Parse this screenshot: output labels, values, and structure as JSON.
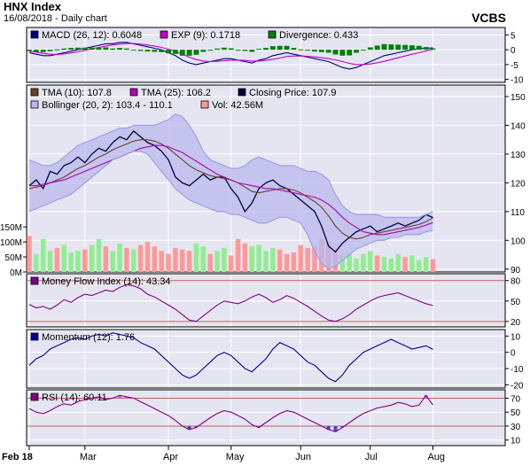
{
  "header": {
    "title": "HNX Index",
    "subtitle": "16/08/2018 - Daily chart",
    "ticker": "VCBS"
  },
  "colors": {
    "panel_bg": "#e5e5f2",
    "grid": "#ffffff",
    "macd": "#000080",
    "exp": "#c000c0",
    "divergence": "#008000",
    "tma10": "#6b4226",
    "tma25": "#b000b0",
    "closing": "#000040",
    "bollinger_fill": "#b8b8ee",
    "bollinger_edge": "#9a9ae0",
    "vol_up": "#90ee90",
    "vol_down": "#ff9999",
    "mfi": "#800080",
    "momentum": "#0000a0",
    "rsi": "#800080",
    "level_line": "#c06060",
    "shade_up": "#d060d0",
    "shade_down": "#4444cc"
  },
  "chart_data": [
    {
      "type": "bar",
      "panel": "macd",
      "legend": [
        {
          "swatch": "macd",
          "label": "MACD (26, 12): 0.6048"
        },
        {
          "swatch": "exp",
          "label": "EXP (9): 0.1718"
        },
        {
          "swatch": "divergence",
          "label": "Divergence: 0.433"
        }
      ],
      "y_ticks": [
        5,
        0,
        -5,
        -10
      ],
      "ylim": [
        -11,
        7.5
      ],
      "series": [
        {
          "name": "MACD (26, 12)",
          "type": "line",
          "color": "macd",
          "values": [
            -1,
            -1.5,
            -2,
            -2,
            -1.5,
            -1,
            -0.5,
            0,
            0.5,
            1,
            1.5,
            2,
            2,
            2.5,
            2.5,
            2,
            1.5,
            1,
            0.5,
            0,
            -1,
            -2,
            -3.5,
            -4.5,
            -5,
            -4.5,
            -4,
            -3.5,
            -3,
            -3,
            -3.5,
            -4,
            -4.5,
            -3.5,
            -3,
            -2,
            -1.5,
            -1,
            -1.5,
            -2,
            -2.5,
            -3,
            -3.5,
            -4,
            -5,
            -6,
            -6.5,
            -6,
            -5,
            -4,
            -3,
            -2,
            -1.5,
            -1,
            -0.5,
            0,
            0.3,
            0.5,
            0.6
          ]
        },
        {
          "name": "EXP (9)",
          "type": "line",
          "color": "exp",
          "values": [
            -0.5,
            -0.8,
            -1.2,
            -1.5,
            -1.6,
            -1.4,
            -1.1,
            -0.7,
            -0.2,
            0.3,
            0.8,
            1.2,
            1.6,
            1.9,
            2.1,
            2.1,
            1.9,
            1.6,
            1.2,
            0.8,
            0.2,
            -0.6,
            -1.5,
            -2.5,
            -3.3,
            -3.8,
            -4,
            -3.9,
            -3.7,
            -3.5,
            -3.5,
            -3.6,
            -3.8,
            -3.8,
            -3.6,
            -3.2,
            -2.8,
            -2.3,
            -2.1,
            -2.1,
            -2.2,
            -2.4,
            -2.7,
            -3,
            -3.4,
            -4,
            -4.6,
            -5,
            -5,
            -4.8,
            -4.4,
            -3.9,
            -3.3,
            -2.7,
            -2.1,
            -1.5,
            -1,
            -0.4,
            0.17
          ]
        },
        {
          "name": "Divergence",
          "type": "bar",
          "color": "divergence",
          "values": [
            -0.5,
            -0.7,
            -0.8,
            -0.5,
            0.1,
            0.4,
            0.6,
            0.7,
            0.7,
            0.7,
            0.7,
            0.8,
            0.4,
            0.6,
            0.4,
            -0.1,
            -0.4,
            -0.6,
            -0.7,
            -0.8,
            -1.2,
            -1.4,
            -2,
            -2,
            -1.7,
            -0.7,
            0,
            0.4,
            0.7,
            0.5,
            0,
            -0.4,
            -0.7,
            0.3,
            0.6,
            1.2,
            1.3,
            1.3,
            0.6,
            0.1,
            -0.3,
            -0.6,
            -0.8,
            -1,
            -1.6,
            -2,
            -1.9,
            -1,
            0,
            0.8,
            1.4,
            1.9,
            1.8,
            1.7,
            1.6,
            1.5,
            1.3,
            0.9,
            0.43
          ]
        }
      ]
    },
    {
      "type": "line",
      "panel": "price",
      "legend": [
        {
          "swatch": "tma10",
          "label": "TMA (10): 107.8"
        },
        {
          "swatch": "tma25",
          "label": "TMA (25): 106.2"
        },
        {
          "swatch": "closing",
          "label": "Closing Price: 107.9"
        },
        {
          "swatch": "bollinger_fill",
          "label": "Bollinger (20, 2): 103.4 - 110.1"
        },
        {
          "swatch": "vol_down",
          "label": "Vol: 42.56M"
        }
      ],
      "y_ticks": [
        150,
        140,
        130,
        120,
        110,
        100,
        90
      ],
      "ylim": [
        89,
        154
      ],
      "volume_ticks": [
        {
          "label": "150M",
          "value": 150
        },
        {
          "label": "100M",
          "value": 100
        },
        {
          "label": "50M",
          "value": 50
        },
        {
          "label": "0M",
          "value": 0
        }
      ],
      "volume_max": 180,
      "series": [
        {
          "name": "Closing Price",
          "color": "closing",
          "values": [
            119,
            121,
            118,
            124,
            123,
            126,
            127,
            129,
            127,
            130,
            132,
            131,
            134,
            136,
            135,
            138,
            136,
            134,
            133,
            131,
            128,
            122,
            120,
            119,
            121,
            123,
            121,
            122,
            122,
            118,
            115,
            110,
            113,
            118,
            120,
            121,
            119,
            118,
            116,
            114,
            112,
            110,
            105,
            98,
            96,
            99,
            101,
            103,
            104,
            105,
            103,
            104,
            105,
            106,
            105,
            106,
            107,
            109,
            107.9
          ]
        },
        {
          "name": "TMA (10)",
          "color": "tma10",
          "values": [
            118,
            118.5,
            119,
            120,
            121,
            122,
            123.5,
            125,
            126,
            127.5,
            129,
            130,
            131.5,
            132.5,
            133.5,
            134.5,
            135,
            135,
            134.5,
            133.5,
            132,
            130,
            128,
            126,
            124.5,
            123.5,
            122.5,
            122,
            121.5,
            121,
            120,
            118.5,
            117,
            116.5,
            117,
            117.5,
            118,
            118,
            117.5,
            116.5,
            115,
            113.5,
            111.5,
            108.5,
            105,
            102.5,
            101,
            100.5,
            101,
            102,
            102.5,
            103,
            103.5,
            104,
            104.5,
            105,
            105.5,
            106.5,
            107.8
          ]
        },
        {
          "name": "TMA (25)",
          "color": "tma25",
          "values": [
            119,
            119,
            119.5,
            120,
            120.5,
            121,
            122,
            123,
            124,
            125,
            126,
            127,
            128,
            129,
            130,
            131,
            132,
            132.5,
            133,
            133,
            132.5,
            131.5,
            130.5,
            129,
            127.5,
            126,
            124.5,
            123,
            122,
            121,
            120,
            119.5,
            119,
            118.5,
            118,
            118,
            117.5,
            117,
            116.5,
            116,
            115.5,
            115,
            114,
            112.5,
            110.5,
            108,
            106,
            104.5,
            103,
            102.5,
            102,
            102,
            102.5,
            103,
            103.5,
            104,
            104.5,
            105.3,
            106.2
          ]
        },
        {
          "name": "Bollinger upper",
          "color": "bollinger_edge",
          "values": [
            128,
            127,
            126,
            126,
            127,
            129,
            131,
            133,
            134,
            135,
            136,
            137,
            138,
            139,
            139,
            140,
            140,
            140,
            140,
            141,
            142,
            144,
            143,
            140,
            136,
            131,
            128,
            127,
            126,
            125,
            125,
            126,
            128,
            129,
            128,
            127,
            126,
            126,
            126,
            125,
            124,
            124,
            123,
            121,
            116,
            112,
            110,
            109,
            109,
            109,
            109,
            108,
            108,
            108,
            108,
            108,
            108,
            109,
            110.1
          ]
        },
        {
          "name": "Bollinger lower",
          "color": "bollinger_edge",
          "values": [
            110,
            111,
            112,
            113,
            114,
            115,
            116,
            118,
            120,
            122,
            124,
            126,
            128,
            129,
            130,
            131,
            131,
            130,
            127,
            124,
            121,
            118,
            116,
            114,
            113,
            112,
            111,
            110,
            110,
            109,
            109,
            108,
            107,
            106,
            106,
            107,
            108,
            108,
            107,
            106,
            102,
            96,
            92,
            90,
            91,
            93,
            95,
            97,
            98,
            99,
            100,
            100,
            101,
            101,
            102,
            102,
            102,
            103,
            103.4
          ]
        }
      ],
      "volume": {
        "unit": "M",
        "values": [
          120,
          60,
          110,
          70,
          80,
          90,
          65,
          70,
          75,
          90,
          110,
          85,
          70,
          95,
          80,
          75,
          90,
          100,
          85,
          70,
          60,
          80,
          75,
          70,
          95,
          85,
          60,
          70,
          80,
          55,
          110,
          95,
          85,
          90,
          70,
          80,
          75,
          60,
          65,
          90,
          80,
          85,
          110,
          100,
          70,
          55,
          60,
          45,
          60,
          70,
          55,
          50,
          45,
          60,
          50,
          55,
          40,
          50,
          43
        ],
        "direction": [
          "down",
          "up",
          "up",
          "up",
          "down",
          "up",
          "up",
          "up",
          "down",
          "up",
          "up",
          "down",
          "up",
          "up",
          "down",
          "up",
          "down",
          "down",
          "down",
          "down",
          "down",
          "down",
          "down",
          "down",
          "up",
          "up",
          "down",
          "up",
          "up",
          "down",
          "down",
          "down",
          "up",
          "up",
          "up",
          "up",
          "down",
          "down",
          "down",
          "down",
          "down",
          "down",
          "down",
          "down",
          "down",
          "up",
          "up",
          "up",
          "up",
          "up",
          "down",
          "up",
          "up",
          "up",
          "down",
          "up",
          "up",
          "up",
          "down"
        ]
      }
    },
    {
      "type": "line",
      "panel": "mfi",
      "legend": [
        {
          "swatch": "mfi",
          "label": "Money Flow Index (14): 43.34"
        }
      ],
      "y_ticks": [
        80,
        50,
        20
      ],
      "ylim": [
        12,
        90
      ],
      "levels": [
        80,
        20
      ],
      "series": [
        {
          "name": "Money Flow Index (14)",
          "color": "mfi",
          "values": [
            45,
            40,
            42,
            38,
            44,
            52,
            48,
            55,
            60,
            58,
            62,
            66,
            64,
            70,
            74,
            72,
            68,
            60,
            56,
            50,
            44,
            38,
            30,
            22,
            20,
            28,
            36,
            44,
            50,
            48,
            46,
            50,
            56,
            60,
            55,
            48,
            52,
            58,
            54,
            48,
            42,
            35,
            28,
            22,
            20,
            24,
            30,
            38,
            44,
            50,
            55,
            58,
            60,
            62,
            58,
            54,
            50,
            46,
            43.34
          ]
        }
      ]
    },
    {
      "type": "line",
      "panel": "momentum",
      "legend": [
        {
          "swatch": "momentum",
          "label": "Momentum (12): 1.76"
        }
      ],
      "y_ticks": [
        10,
        0,
        -10,
        -20
      ],
      "ylim": [
        -22,
        14
      ],
      "series": [
        {
          "name": "Momentum (12)",
          "color": "momentum",
          "values": [
            -8,
            -4,
            -2,
            2,
            4,
            6,
            8,
            9,
            8,
            10,
            11,
            10,
            12,
            11,
            10,
            9,
            6,
            4,
            2,
            -2,
            -6,
            -10,
            -14,
            -16,
            -14,
            -10,
            -6,
            -2,
            0,
            -2,
            -6,
            -10,
            -12,
            -8,
            -4,
            2,
            6,
            4,
            2,
            -2,
            -6,
            -8,
            -12,
            -16,
            -18,
            -14,
            -8,
            -4,
            0,
            2,
            4,
            6,
            8,
            6,
            4,
            2,
            3,
            4,
            1.76
          ]
        }
      ]
    },
    {
      "type": "area",
      "panel": "rsi",
      "legend": [
        {
          "swatch": "rsi",
          "label": "RSI (14): 60.11"
        }
      ],
      "y_ticks": [
        70,
        50,
        30,
        10
      ],
      "ylim": [
        2,
        82
      ],
      "levels": [
        70,
        30
      ],
      "series": [
        {
          "name": "RSI (14)",
          "color": "rsi",
          "values": [
            55,
            50,
            48,
            52,
            58,
            62,
            60,
            65,
            68,
            70,
            72,
            68,
            70,
            74,
            72,
            70,
            65,
            60,
            55,
            50,
            45,
            38,
            30,
            25,
            28,
            35,
            42,
            48,
            52,
            50,
            45,
            40,
            32,
            28,
            35,
            42,
            48,
            52,
            50,
            45,
            40,
            35,
            30,
            25,
            22,
            28,
            35,
            42,
            48,
            52,
            56,
            58,
            60,
            64,
            62,
            58,
            60,
            74,
            60.11
          ]
        }
      ]
    }
  ],
  "x_axis": {
    "months": [
      {
        "label": "Feb 18",
        "index": 0
      },
      {
        "label": "Mar",
        "index": 8
      },
      {
        "label": "Apr",
        "index": 20
      },
      {
        "label": "May",
        "index": 29
      },
      {
        "label": "Jun",
        "index": 39
      },
      {
        "label": "Jul",
        "index": 49
      },
      {
        "label": "Aug",
        "index": 58
      }
    ],
    "span": 68
  }
}
